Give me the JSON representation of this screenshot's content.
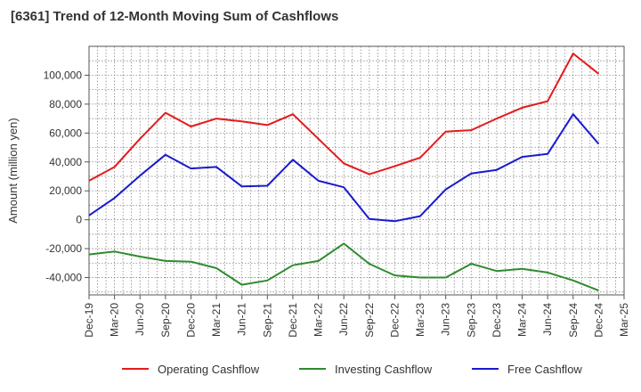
{
  "chart_data": {
    "type": "line",
    "title": "[6361]  Trend of 12-Month Moving Sum of Cashflows",
    "xlabel": "",
    "ylabel": "Amount (million yen)",
    "categories": [
      "Dec-19",
      "Mar-20",
      "Jun-20",
      "Sep-20",
      "Dec-20",
      "Mar-21",
      "Jun-21",
      "Sep-21",
      "Dec-21",
      "Mar-22",
      "Jun-22",
      "Sep-22",
      "Dec-22",
      "Mar-23",
      "Jun-23",
      "Sep-23",
      "Dec-23",
      "Mar-24",
      "Jun-24",
      "Sep-24",
      "Dec-24",
      "Mar-25"
    ],
    "ylim": [
      -52000,
      120000
    ],
    "yticks": [
      -40000,
      -20000,
      0,
      20000,
      40000,
      60000,
      80000,
      100000
    ],
    "ytick_labels": [
      "-40,000",
      "-20,000",
      "0",
      "20,000",
      "40,000",
      "60,000",
      "80,000",
      "100,000"
    ],
    "grid": true,
    "legend_position": "bottom",
    "series": [
      {
        "name": "Operating Cashflow",
        "color": "#e41a1c",
        "values": [
          27000,
          36500,
          56000,
          74000,
          64500,
          70000,
          68000,
          65500,
          73000,
          56000,
          39000,
          31500,
          37000,
          43000,
          61000,
          62000,
          70000,
          77500,
          82000,
          115000,
          101000,
          null
        ]
      },
      {
        "name": "Investing Cashflow",
        "color": "#2e8b2e",
        "values": [
          -24000,
          -22000,
          -25500,
          -28500,
          -29000,
          -33500,
          -45000,
          -42000,
          -31500,
          -28500,
          -16500,
          -30500,
          -38500,
          -40000,
          -40000,
          -30500,
          -35500,
          -34000,
          -36500,
          -42000,
          -49000,
          null
        ]
      },
      {
        "name": "Free Cashflow",
        "color": "#1a1acd",
        "values": [
          3000,
          15000,
          30500,
          45000,
          35500,
          36500,
          23000,
          23500,
          41500,
          27000,
          22500,
          500,
          -1000,
          2500,
          21000,
          32000,
          34500,
          43500,
          45500,
          73000,
          52500,
          null
        ]
      }
    ]
  }
}
